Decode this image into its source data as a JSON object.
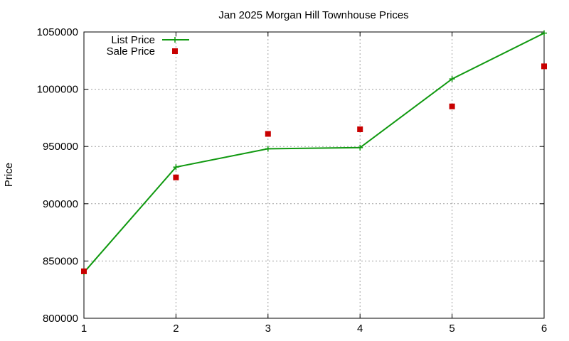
{
  "chart_data": {
    "type": "line",
    "title": "Jan 2025 Morgan Hill Townhouse Prices",
    "xlabel": "",
    "ylabel": "Price",
    "xlim": [
      1,
      6
    ],
    "ylim": [
      800000,
      1050000
    ],
    "x_ticks": [
      "1",
      "2",
      "3",
      "4",
      "5",
      "6"
    ],
    "y_ticks": [
      "800000",
      "850000",
      "900000",
      "950000",
      "1000000",
      "1050000"
    ],
    "grid": true,
    "legend_position": "top-left",
    "series": [
      {
        "name": "List Price",
        "style": "linespoints",
        "marker": "plus",
        "color": "#109910",
        "x": [
          1,
          2,
          3,
          4,
          5,
          6
        ],
        "values": [
          840000,
          932000,
          948000,
          949000,
          1009000,
          1049000
        ]
      },
      {
        "name": "Sale Price",
        "style": "points",
        "marker": "square",
        "color": "#c80000",
        "x": [
          1,
          2,
          3,
          4,
          5,
          6
        ],
        "values": [
          841000,
          923000,
          961000,
          965000,
          985000,
          1020000
        ]
      }
    ]
  }
}
